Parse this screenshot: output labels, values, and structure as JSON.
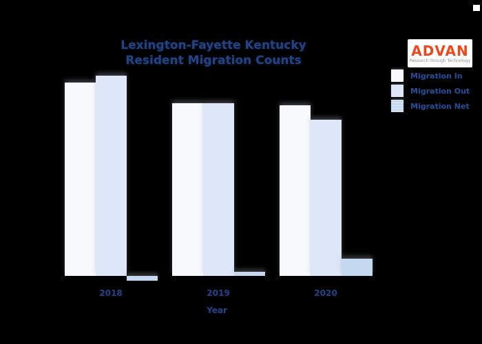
{
  "colors": {
    "background": "#000000",
    "text_navy": "#24427E",
    "logo_orange": "#E8491D",
    "logo_tagline_gray": "#8f8f8f",
    "bar_in": "#f8f9fd",
    "bar_out": "#dde7f7",
    "bar_net": "#c4d9ef"
  },
  "logo": {
    "text": "ADVAN",
    "tagline": "Research through Technology"
  },
  "chart_data": {
    "type": "bar",
    "title": "Lexington-Fayette Kentucky Resident Migration Counts",
    "title_lines": [
      "Lexington-Fayette Kentucky",
      "Resident Migration Counts"
    ],
    "categories": [
      "2018",
      "2019",
      "2020"
    ],
    "series": [
      {
        "name": "Migration In",
        "color": "#f8f9fd",
        "values": [
          20300,
          18100,
          17900
        ]
      },
      {
        "name": "Migration Out",
        "color": "#dde7f7",
        "values": [
          21000,
          18100,
          16400
        ]
      },
      {
        "name": "Migration Net",
        "color": "#c4d9ef",
        "values": [
          -500,
          400,
          1800
        ]
      }
    ],
    "xlabel": "Year",
    "ylabel": "",
    "y_axis_visible": false,
    "grid": false,
    "legend_position": "upper right",
    "values_estimated_from_bar_heights": true
  }
}
